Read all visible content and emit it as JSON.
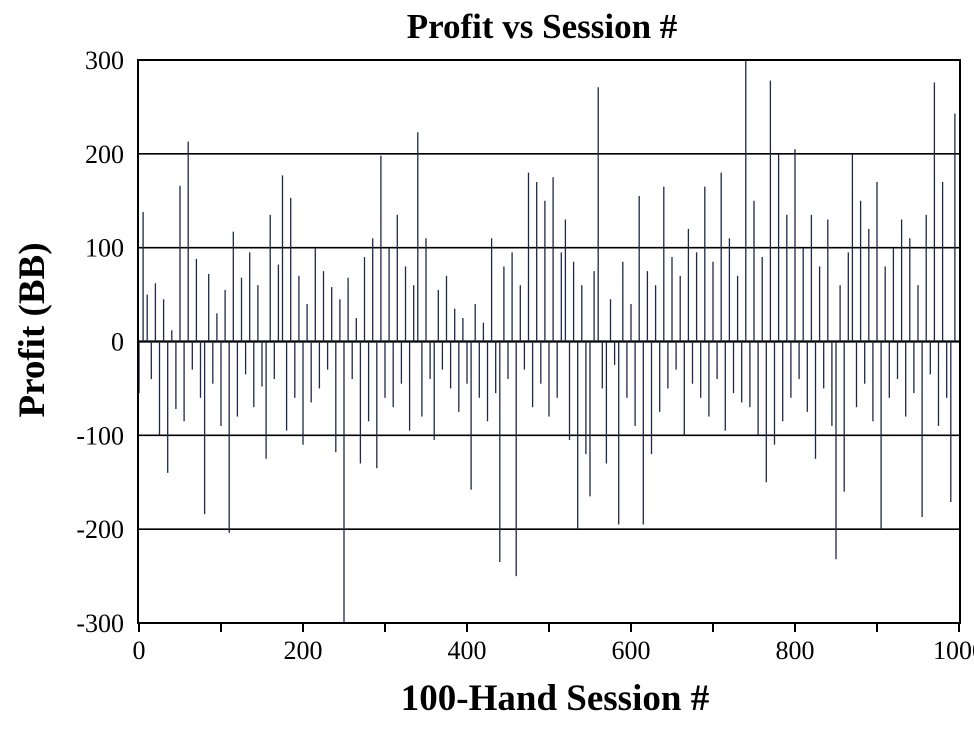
{
  "chart_data": {
    "type": "bar",
    "title": "Profit vs Session #",
    "xlabel": "100-Hand Session #",
    "ylabel": "Profit (BB)",
    "xlim": [
      0,
      1000
    ],
    "ylim": [
      -300,
      300
    ],
    "xticks": [
      0,
      200,
      400,
      600,
      800,
      1000
    ],
    "xminor_ticks": [
      100,
      300,
      500,
      700,
      900
    ],
    "yticks": [
      -300,
      -200,
      -100,
      0,
      100,
      200,
      300
    ],
    "grid": "horizontal",
    "bar_color": "#1c2a45",
    "x": [
      0,
      5,
      10,
      15,
      20,
      25,
      30,
      35,
      40,
      45,
      50,
      55,
      60,
      65,
      70,
      75,
      80,
      85,
      90,
      95,
      100,
      105,
      110,
      115,
      120,
      125,
      130,
      135,
      140,
      145,
      150,
      155,
      160,
      165,
      170,
      175,
      180,
      185,
      190,
      195,
      200,
      205,
      210,
      215,
      220,
      225,
      230,
      235,
      240,
      245,
      250,
      255,
      260,
      265,
      270,
      275,
      280,
      285,
      290,
      295,
      300,
      305,
      310,
      315,
      320,
      325,
      330,
      335,
      340,
      345,
      350,
      355,
      360,
      365,
      370,
      375,
      380,
      385,
      390,
      395,
      400,
      405,
      410,
      415,
      420,
      425,
      430,
      435,
      440,
      445,
      450,
      455,
      460,
      465,
      470,
      475,
      480,
      485,
      490,
      495,
      500,
      505,
      510,
      515,
      520,
      525,
      530,
      535,
      540,
      545,
      550,
      555,
      560,
      565,
      570,
      575,
      580,
      585,
      590,
      595,
      600,
      605,
      610,
      615,
      620,
      625,
      630,
      635,
      640,
      645,
      650,
      655,
      660,
      665,
      670,
      675,
      680,
      685,
      690,
      695,
      700,
      705,
      710,
      715,
      720,
      725,
      730,
      735,
      740,
      745,
      750,
      755,
      760,
      765,
      770,
      775,
      780,
      785,
      790,
      795,
      800,
      805,
      810,
      815,
      820,
      825,
      830,
      835,
      840,
      845,
      850,
      855,
      860,
      865,
      870,
      875,
      880,
      885,
      890,
      895,
      900,
      905,
      910,
      915,
      920,
      925,
      930,
      935,
      940,
      945,
      950,
      955,
      960,
      965,
      970,
      975,
      980,
      985,
      990,
      995
    ],
    "values": [
      -55,
      138,
      50,
      -40,
      62,
      -100,
      45,
      -140,
      12,
      -72,
      166,
      -85,
      213,
      -30,
      88,
      -60,
      -184,
      72,
      -45,
      30,
      -90,
      55,
      -204,
      117,
      -80,
      68,
      -35,
      95,
      -70,
      60,
      -48,
      -125,
      135,
      -40,
      82,
      177,
      -95,
      153,
      -60,
      70,
      -110,
      40,
      -65,
      100,
      -50,
      75,
      -30,
      58,
      -118,
      45,
      -300,
      68,
      -40,
      25,
      -130,
      90,
      -85,
      110,
      -135,
      198,
      -60,
      100,
      -70,
      135,
      -45,
      80,
      -95,
      60,
      223,
      -80,
      110,
      -40,
      -105,
      55,
      -30,
      70,
      -50,
      35,
      -75,
      25,
      -45,
      -158,
      40,
      -60,
      20,
      -85,
      110,
      -55,
      -235,
      80,
      -40,
      95,
      -250,
      60,
      -30,
      180,
      -70,
      170,
      -45,
      150,
      -80,
      175,
      -60,
      95,
      130,
      -105,
      85,
      -200,
      60,
      -120,
      -165,
      75,
      271,
      -50,
      -130,
      45,
      -25,
      -195,
      85,
      -60,
      40,
      -90,
      155,
      -195,
      75,
      -120,
      60,
      -75,
      165,
      -50,
      90,
      -30,
      70,
      -100,
      120,
      -45,
      95,
      -60,
      165,
      -80,
      85,
      -40,
      180,
      -95,
      110,
      -55,
      70,
      -65,
      300,
      -70,
      150,
      -100,
      90,
      -150,
      278,
      -110,
      200,
      -85,
      135,
      -60,
      205,
      -40,
      100,
      -75,
      135,
      -125,
      80,
      -50,
      130,
      -90,
      -232,
      60,
      -160,
      95,
      200,
      -70,
      150,
      -45,
      120,
      -85,
      170,
      -200,
      80,
      -60,
      100,
      -40,
      130,
      -80,
      110,
      -55,
      60,
      -187,
      135,
      -35,
      276,
      -90,
      170,
      -60,
      -171,
      243
    ]
  }
}
